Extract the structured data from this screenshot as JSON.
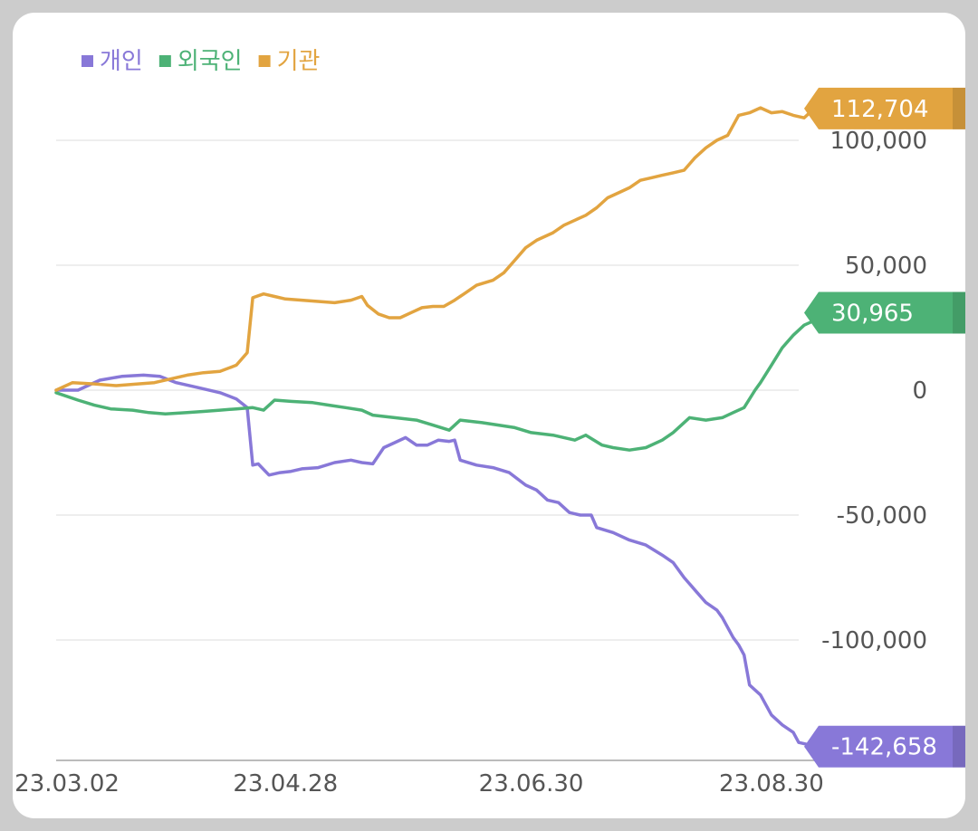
{
  "chart_data": {
    "type": "line",
    "title": "",
    "xlabel": "",
    "ylabel": "",
    "ylim": [
      -148000,
      120000
    ],
    "y_ticks": [
      100000,
      50000,
      0,
      -50000,
      -100000
    ],
    "y_tick_labels": [
      "100,000",
      "50,000",
      "0",
      "-50,000",
      "-100,000"
    ],
    "x_tick_labels": [
      "23.03.02",
      "23.04.28",
      "23.06.30",
      "23.08.30"
    ],
    "x_tick_index": [
      2,
      42,
      87,
      131
    ],
    "n_points": 137,
    "grid": true,
    "legend": "top-left",
    "series": [
      {
        "name": "개인",
        "color": "#8878d8",
        "end_label": "-142,658",
        "points": [
          [
            0,
            0
          ],
          [
            4,
            0
          ],
          [
            8,
            4000
          ],
          [
            12,
            5500
          ],
          [
            16,
            6000
          ],
          [
            19,
            5500
          ],
          [
            22,
            3000
          ],
          [
            26,
            1000
          ],
          [
            30,
            -1000
          ],
          [
            33,
            -3500
          ],
          [
            35,
            -7000
          ],
          [
            36,
            -30000
          ],
          [
            37,
            -29500
          ],
          [
            39,
            -34000
          ],
          [
            41,
            -33000
          ],
          [
            43,
            -32500
          ],
          [
            45,
            -31500
          ],
          [
            48,
            -31000
          ],
          [
            51,
            -29000
          ],
          [
            54,
            -28000
          ],
          [
            56,
            -29000
          ],
          [
            58,
            -29500
          ],
          [
            60,
            -23000
          ],
          [
            62,
            -21000
          ],
          [
            64,
            -19000
          ],
          [
            66,
            -22000
          ],
          [
            68,
            -22000
          ],
          [
            70,
            -20000
          ],
          [
            72,
            -20500
          ],
          [
            73,
            -20000
          ],
          [
            74,
            -28000
          ],
          [
            77,
            -30000
          ],
          [
            80,
            -31000
          ],
          [
            83,
            -33000
          ],
          [
            86,
            -38000
          ],
          [
            88,
            -40000
          ],
          [
            90,
            -44000
          ],
          [
            92,
            -45000
          ],
          [
            94,
            -49000
          ],
          [
            96,
            -50000
          ],
          [
            98,
            -50000
          ],
          [
            99,
            -55000
          ],
          [
            102,
            -57000
          ],
          [
            105,
            -60000
          ],
          [
            108,
            -62000
          ],
          [
            111,
            -66000
          ],
          [
            113,
            -69000
          ],
          [
            115,
            -75000
          ],
          [
            117,
            -80000
          ],
          [
            119,
            -85000
          ],
          [
            121,
            -88000
          ],
          [
            122,
            -91000
          ],
          [
            124,
            -99000
          ],
          [
            125,
            -102000
          ],
          [
            126,
            -106000
          ],
          [
            127,
            -118000
          ],
          [
            129,
            -122000
          ],
          [
            131,
            -130000
          ],
          [
            133,
            -134000
          ],
          [
            135,
            -137000
          ],
          [
            136,
            -141000
          ],
          [
            138,
            -142000
          ],
          [
            140,
            -142658
          ]
        ]
      },
      {
        "name": "외국인",
        "color": "#4db276",
        "end_label": "30,965",
        "points": [
          [
            0,
            -1000
          ],
          [
            4,
            -4000
          ],
          [
            7,
            -6000
          ],
          [
            10,
            -7500
          ],
          [
            14,
            -8000
          ],
          [
            17,
            -9000
          ],
          [
            20,
            -9500
          ],
          [
            24,
            -9000
          ],
          [
            27,
            -8500
          ],
          [
            30,
            -8000
          ],
          [
            33,
            -7500
          ],
          [
            36,
            -7000
          ],
          [
            38,
            -8000
          ],
          [
            40,
            -4000
          ],
          [
            43,
            -4500
          ],
          [
            47,
            -5000
          ],
          [
            50,
            -6000
          ],
          [
            53,
            -7000
          ],
          [
            56,
            -8000
          ],
          [
            58,
            -10000
          ],
          [
            62,
            -11000
          ],
          [
            66,
            -12000
          ],
          [
            69,
            -14000
          ],
          [
            72,
            -16000
          ],
          [
            74,
            -12000
          ],
          [
            78,
            -13000
          ],
          [
            81,
            -14000
          ],
          [
            84,
            -15000
          ],
          [
            87,
            -17000
          ],
          [
            91,
            -18000
          ],
          [
            93,
            -19000
          ],
          [
            95,
            -20000
          ],
          [
            97,
            -18000
          ],
          [
            100,
            -22000
          ],
          [
            102,
            -23000
          ],
          [
            105,
            -24000
          ],
          [
            108,
            -23000
          ],
          [
            111,
            -20000
          ],
          [
            113,
            -17000
          ],
          [
            116,
            -11000
          ],
          [
            119,
            -12000
          ],
          [
            122,
            -11000
          ],
          [
            124,
            -9000
          ],
          [
            126,
            -7000
          ],
          [
            128,
            0
          ],
          [
            129,
            3000
          ],
          [
            131,
            10000
          ],
          [
            133,
            17000
          ],
          [
            135,
            22000
          ],
          [
            137,
            26000
          ],
          [
            139,
            28000
          ],
          [
            141,
            28500
          ],
          [
            142,
            30965
          ]
        ]
      },
      {
        "name": "기관",
        "color": "#e2a440",
        "end_label": "112,704",
        "points": [
          [
            0,
            0
          ],
          [
            3,
            3000
          ],
          [
            7,
            2500
          ],
          [
            11,
            1800
          ],
          [
            15,
            2500
          ],
          [
            18,
            3000
          ],
          [
            21,
            4500
          ],
          [
            24,
            6000
          ],
          [
            27,
            7000
          ],
          [
            30,
            7500
          ],
          [
            33,
            10000
          ],
          [
            35,
            15000
          ],
          [
            36,
            37000
          ],
          [
            38,
            38500
          ],
          [
            40,
            37500
          ],
          [
            42,
            36500
          ],
          [
            45,
            36000
          ],
          [
            48,
            35500
          ],
          [
            51,
            35000
          ],
          [
            54,
            36000
          ],
          [
            56,
            37500
          ],
          [
            57,
            34000
          ],
          [
            59,
            30500
          ],
          [
            61,
            29000
          ],
          [
            63,
            29000
          ],
          [
            65,
            31000
          ],
          [
            67,
            33000
          ],
          [
            69,
            33500
          ],
          [
            71,
            33500
          ],
          [
            73,
            36000
          ],
          [
            75,
            39000
          ],
          [
            77,
            42000
          ],
          [
            80,
            44000
          ],
          [
            82,
            47000
          ],
          [
            84,
            52000
          ],
          [
            86,
            57000
          ],
          [
            88,
            60000
          ],
          [
            91,
            63000
          ],
          [
            93,
            66000
          ],
          [
            95,
            68000
          ],
          [
            97,
            70000
          ],
          [
            99,
            73000
          ],
          [
            101,
            77000
          ],
          [
            103,
            79000
          ],
          [
            105,
            81000
          ],
          [
            107,
            84000
          ],
          [
            109,
            85000
          ],
          [
            111,
            86000
          ],
          [
            113,
            87000
          ],
          [
            115,
            88000
          ],
          [
            117,
            93000
          ],
          [
            119,
            97000
          ],
          [
            121,
            100000
          ],
          [
            123,
            102000
          ],
          [
            125,
            110000
          ],
          [
            127,
            111000
          ],
          [
            129,
            113000
          ],
          [
            131,
            111000
          ],
          [
            133,
            111500
          ],
          [
            135,
            110000
          ],
          [
            137,
            109000
          ],
          [
            139,
            113000
          ],
          [
            141,
            112704
          ]
        ]
      }
    ]
  }
}
